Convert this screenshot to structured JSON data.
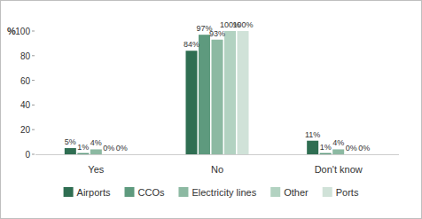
{
  "chart_data": {
    "type": "bar",
    "y_label": "%",
    "categories": [
      "Yes",
      "No",
      "Don't know"
    ],
    "series": [
      {
        "name": "Airports",
        "color": "#2f6e52",
        "values": [
          5,
          84,
          11
        ],
        "value_labels": [
          "5%",
          "84%",
          "11%"
        ]
      },
      {
        "name": "CCOs",
        "color": "#5e9a7e",
        "values": [
          1,
          97,
          1
        ],
        "value_labels": [
          "1%",
          "97%",
          "1%"
        ]
      },
      {
        "name": "Electricity lines",
        "color": "#8cb9a2",
        "values": [
          4,
          93,
          4
        ],
        "value_labels": [
          "4%",
          "93%",
          "4%"
        ]
      },
      {
        "name": "Other",
        "color": "#b2d2c1",
        "values": [
          0,
          100,
          0
        ],
        "value_labels": [
          "0%",
          "100%",
          "0%"
        ]
      },
      {
        "name": "Ports",
        "color": "#d0e2d8",
        "values": [
          0,
          100,
          0
        ],
        "value_labels": [
          "0%",
          "100%",
          "0%"
        ]
      }
    ],
    "ylim": [
      0,
      100
    ],
    "yticks": [
      0,
      20,
      40,
      60,
      80,
      100
    ],
    "grid": false,
    "data_labels": true,
    "legend": "bottom"
  }
}
